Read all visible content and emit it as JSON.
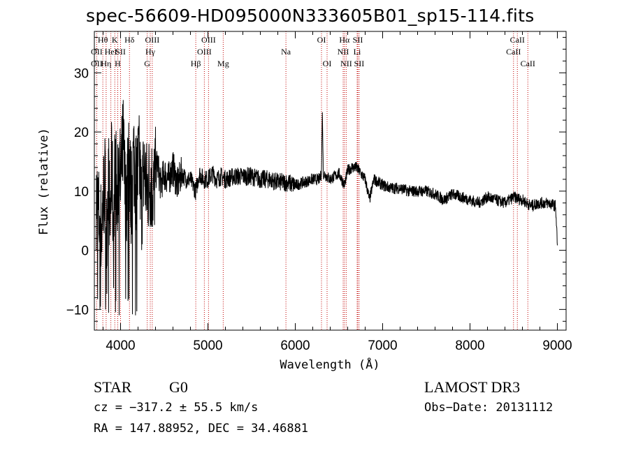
{
  "chart_data": {
    "type": "line",
    "title": "spec-56609-HD095000N333605B01_sp15-114.fits",
    "xlabel": "Wavelength (Å)",
    "ylabel": "Flux (relative)",
    "xlim": [
      3700,
      9100
    ],
    "ylim": [
      -13.5,
      37
    ],
    "x_ticks": [
      4000,
      5000,
      6000,
      7000,
      8000,
      9000
    ],
    "x_tick_labels": [
      "4000",
      "5000",
      "6000",
      "7000",
      "8000",
      "9000"
    ],
    "y_ticks": [
      -10,
      0,
      10,
      20,
      30
    ],
    "y_tick_labels": [
      "−10",
      "0",
      "10",
      "20",
      "30"
    ],
    "series": [
      {
        "name": "flux",
        "x": [
          3720,
          3750,
          3780,
          3800,
          3820,
          3840,
          3860,
          3880,
          3900,
          3920,
          3940,
          3960,
          3980,
          4000,
          4030,
          4060,
          4090,
          4120,
          4150,
          4180,
          4210,
          4240,
          4270,
          4300,
          4340,
          4380,
          4420,
          4460,
          4500,
          4550,
          4600,
          4650,
          4700,
          4750,
          4800,
          4861,
          4900,
          4950,
          5000,
          5050,
          5100,
          5150,
          5200,
          5300,
          5400,
          5500,
          5600,
          5700,
          5800,
          5900,
          6000,
          6100,
          6200,
          6280,
          6300,
          6310,
          6320,
          6400,
          6500,
          6563,
          6600,
          6650,
          6700,
          6750,
          6800,
          6850,
          6900,
          7000,
          7100,
          7200,
          7300,
          7400,
          7500,
          7600,
          7700,
          7800,
          7900,
          8000,
          8100,
          8200,
          8300,
          8400,
          8500,
          8600,
          8700,
          8800,
          8900,
          8980,
          9000
        ],
        "y": [
          9,
          6,
          3,
          8,
          12,
          1,
          14,
          4,
          15,
          2,
          17,
          6,
          16,
          11,
          18,
          7,
          17,
          9,
          16,
          12,
          15,
          8,
          14,
          10,
          12,
          10,
          15,
          11,
          13,
          12,
          14,
          11,
          13,
          12,
          12,
          10,
          13,
          12,
          12,
          13,
          12,
          12.5,
          12,
          12.5,
          12.5,
          12.5,
          12,
          12,
          11.5,
          11.5,
          11,
          11.5,
          12,
          12,
          13,
          24,
          13,
          12,
          13,
          11,
          13.5,
          14,
          14,
          13,
          12,
          8.5,
          12,
          11,
          10.5,
          10.5,
          10,
          10,
          10,
          9.5,
          8.5,
          9.5,
          9,
          8.5,
          8,
          9,
          8.5,
          8,
          9,
          8.5,
          7.5,
          8,
          8,
          7.5,
          1
        ]
      }
    ],
    "spectral_lines": [
      {
        "label": "OII",
        "x": 3727,
        "row": 3
      },
      {
        "label": "Hθ",
        "x": 3797,
        "row": 1
      },
      {
        "label": "OII",
        "x": 3727,
        "row": 2
      },
      {
        "label": "Hη",
        "x": 3835,
        "row": 3
      },
      {
        "label": "HeI",
        "x": 3889,
        "row": 2
      },
      {
        "label": "K",
        "x": 3934,
        "row": 1
      },
      {
        "label": "H",
        "x": 3968,
        "row": 3
      },
      {
        "label": "SII",
        "x": 4000,
        "row": 2
      },
      {
        "label": "Hδ",
        "x": 4102,
        "row": 1
      },
      {
        "label": "OIII",
        "x": 4363,
        "row": 1
      },
      {
        "label": "Hγ",
        "x": 4340,
        "row": 2
      },
      {
        "label": "G",
        "x": 4305,
        "row": 3
      },
      {
        "label": "OIII",
        "x": 5007,
        "row": 1
      },
      {
        "label": "OIII",
        "x": 4959,
        "row": 2
      },
      {
        "label": "Hβ",
        "x": 4861,
        "row": 3
      },
      {
        "label": "Mg",
        "x": 5175,
        "row": 3
      },
      {
        "label": "Na",
        "x": 5893,
        "row": 2
      },
      {
        "label": "OI",
        "x": 6300,
        "row": 1
      },
      {
        "label": "OI",
        "x": 6364,
        "row": 3
      },
      {
        "label": "Hα",
        "x": 6563,
        "row": 1
      },
      {
        "label": "NII",
        "x": 6548,
        "row": 2
      },
      {
        "label": "NII",
        "x": 6583,
        "row": 3
      },
      {
        "label": "SII",
        "x": 6716,
        "row": 1
      },
      {
        "label": "Li",
        "x": 6708,
        "row": 2
      },
      {
        "label": "SII",
        "x": 6731,
        "row": 3
      },
      {
        "label": "CaII",
        "x": 8542,
        "row": 1
      },
      {
        "label": "CaII",
        "x": 8498,
        "row": 2
      },
      {
        "label": "CaII",
        "x": 8662,
        "row": 3
      }
    ]
  },
  "footer": {
    "class_label": "STAR",
    "subclass_label": "G0",
    "survey": "LAMOST DR3",
    "cz": "cz = −317.2 ± 55.5 km/s",
    "obs_date": "Obs−Date: 20131112",
    "coords": "RA = 147.88952, DEC =  34.46881"
  }
}
